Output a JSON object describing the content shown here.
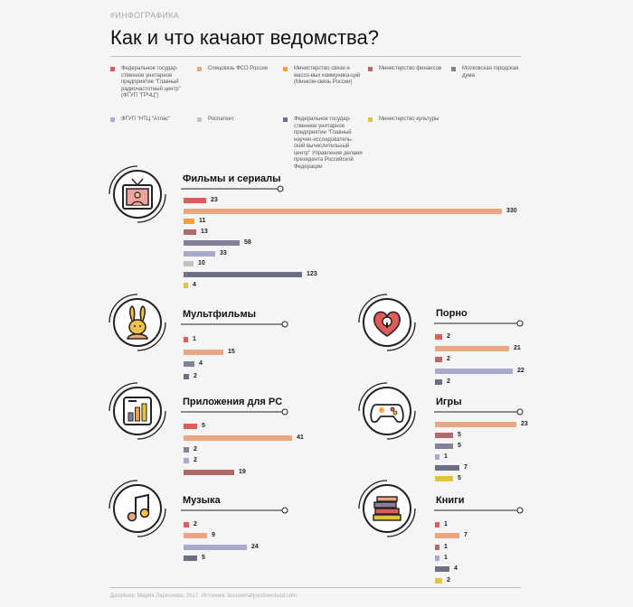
{
  "header": {
    "tag": "#ИНФОГРАФИКА",
    "title": "Как и что качают ведомства?"
  },
  "footer": "Дизайнер: Мария Ларионова, 2017. Источник: iknowwhatyoudownload.com",
  "colors": {
    "grch": "#e05a5a",
    "fso": "#eaa682",
    "minsvyaz": "#f5a03c",
    "minfin": "#b06a68",
    "mosduma": "#857f98",
    "atlas": "#a9a9cc",
    "rospatent": "#c2c2c2",
    "gnivc": "#6c7087",
    "minkult": "#e2c43a"
  },
  "legend": [
    {
      "key": "grch",
      "label": "Федеральное государ-ственное унитарное предприятие \"Главный радиочастотный центр\" (ФГУП \"ГРЧЦ\")"
    },
    {
      "key": "fso",
      "label": "Спецсвязь ФСО России"
    },
    {
      "key": "minsvyaz",
      "label": "Министерство связи и массо-вых коммуника-ций (Минком-связь России)"
    },
    {
      "key": "minfin",
      "label": "Министерство финансов"
    },
    {
      "key": "mosduma",
      "label": "Московская городская дума"
    },
    {
      "key": "atlas",
      "label": "ФГУП \"НТЦ \"Атлас\""
    },
    {
      "key": "rospatent",
      "label": "Роспатент"
    },
    {
      "key": "gnivc",
      "label": "Федеральное государ-ственное унитарное предприятие \"Главный научно-исследователь-ский вычислительный центр\" Управления делами президента Российской Федерации"
    },
    {
      "key": "minkult",
      "label": "Министерство культуры"
    }
  ],
  "chart_data": {
    "type": "bar",
    "title": "Как и что качают ведомства?",
    "series_names": [
      "ФГУП \"ГРЧЦ\"",
      "Спецсвязь ФСО России",
      "Минкомсвязь России",
      "Министерство финансов",
      "Московская городская дума",
      "ФГУП \"НТЦ \"Атлас\"",
      "Роспатент",
      "ФГУП ГНИВЦ",
      "Министерство культуры"
    ],
    "categories": [
      {
        "name": "Фильмы и сериалы",
        "icon": "tv-icon",
        "bars": [
          {
            "key": "grch",
            "value": 23
          },
          {
            "key": "fso",
            "value": 330
          },
          {
            "key": "minsvyaz",
            "value": 11
          },
          {
            "key": "minfin",
            "value": 13
          },
          {
            "key": "mosduma",
            "value": 58
          },
          {
            "key": "atlas",
            "value": 33
          },
          {
            "key": "rospatent",
            "value": 10
          },
          {
            "key": "gnivc",
            "value": 123
          },
          {
            "key": "minkult",
            "value": 4
          }
        ]
      },
      {
        "name": "Мультфильмы",
        "icon": "rabbit-icon",
        "bars": [
          {
            "key": "grch",
            "value": 1
          },
          {
            "key": "fso",
            "value": 15
          },
          {
            "key": "mosduma",
            "value": 4
          },
          {
            "key": "gnivc",
            "value": 2
          }
        ]
      },
      {
        "name": "Порно",
        "icon": "heart-lock-icon",
        "bars": [
          {
            "key": "grch",
            "value": 2
          },
          {
            "key": "fso",
            "value": 21
          },
          {
            "key": "minfin",
            "value": 2
          },
          {
            "key": "atlas",
            "value": 22
          },
          {
            "key": "gnivc",
            "value": 2
          }
        ]
      },
      {
        "name": "Приложения для PC",
        "icon": "app-chart-icon",
        "bars": [
          {
            "key": "grch",
            "value": 5
          },
          {
            "key": "fso",
            "value": 41
          },
          {
            "key": "mosduma",
            "value": 2
          },
          {
            "key": "atlas",
            "value": 2
          },
          {
            "key": "minfin",
            "value": 19
          }
        ]
      },
      {
        "name": "Игры",
        "icon": "gamepad-icon",
        "bars": [
          {
            "key": "fso",
            "value": 23
          },
          {
            "key": "minfin",
            "value": 5
          },
          {
            "key": "mosduma",
            "value": 5
          },
          {
            "key": "atlas",
            "value": 1
          },
          {
            "key": "gnivc",
            "value": 7
          },
          {
            "key": "minkult",
            "value": 5
          }
        ]
      },
      {
        "name": "Музыка",
        "icon": "music-note-icon",
        "bars": [
          {
            "key": "grch",
            "value": 2
          },
          {
            "key": "fso",
            "value": 9
          },
          {
            "key": "atlas",
            "value": 24
          },
          {
            "key": "gnivc",
            "value": 5
          }
        ]
      },
      {
        "name": "Книги",
        "icon": "books-icon",
        "bars": [
          {
            "key": "grch",
            "value": 1
          },
          {
            "key": "fso",
            "value": 7
          },
          {
            "key": "minfin",
            "value": 1
          },
          {
            "key": "atlas",
            "value": 1
          },
          {
            "key": "gnivc",
            "value": 4
          },
          {
            "key": "minkult",
            "value": 2
          }
        ]
      }
    ]
  }
}
